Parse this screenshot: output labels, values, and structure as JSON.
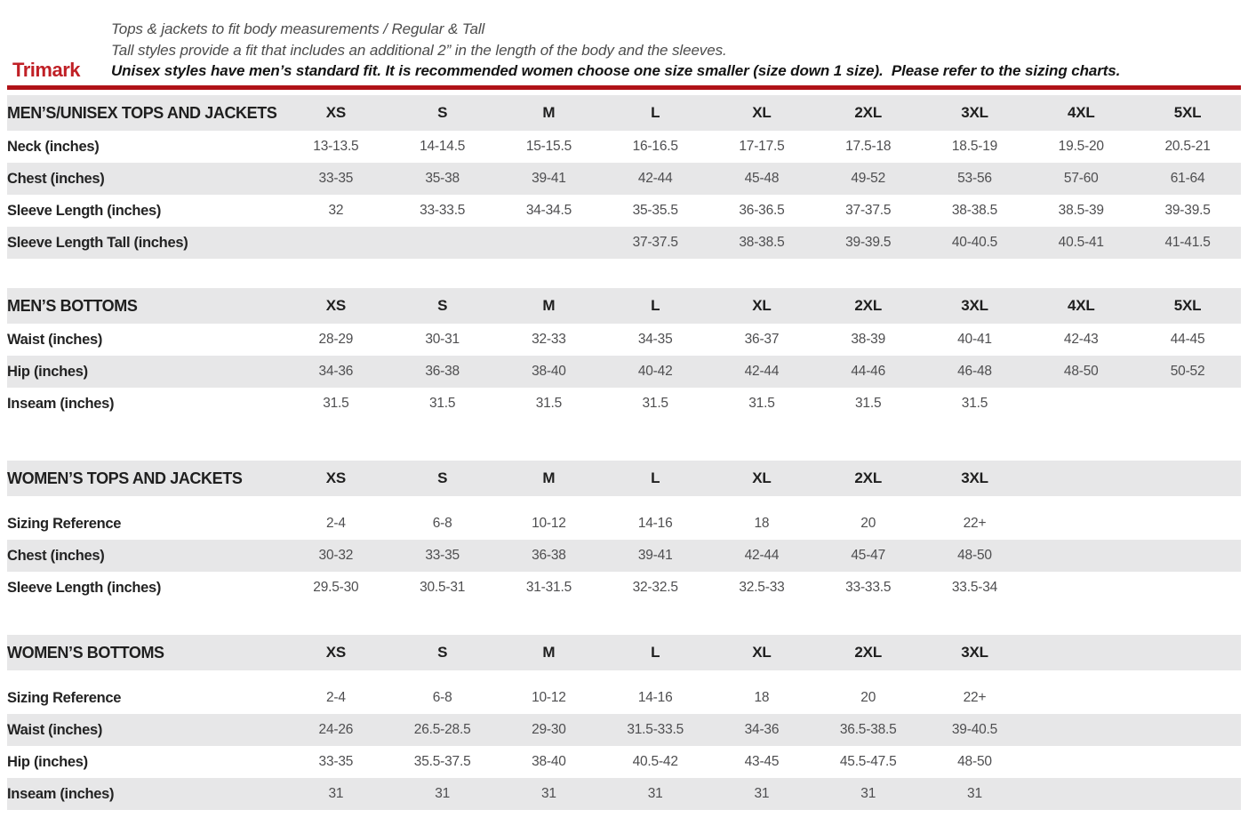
{
  "header": {
    "brand": "Trimark",
    "line1": "Tops & jackets to fit body measurements / Regular & Tall",
    "line2": "Tall styles provide a fit that includes an additional 2” in the length of the body and the sleeves.",
    "line3": "Unisex styles have men’s standard fit. It is recommended women choose one size smaller (size down 1 size).  Please refer to the sizing charts.",
    "accent_color": "#b01218",
    "brand_color": "#c02026",
    "stripe_color": "#e7e7e8"
  },
  "tables": [
    {
      "title": "MEN’S/UNISEX TOPS AND JACKETS",
      "columns": [
        "XS",
        "S",
        "M",
        "L",
        "XL",
        "2XL",
        "3XL",
        "4XL",
        "5XL"
      ],
      "header_spacer": false,
      "rows": [
        {
          "label": "Neck (inches)",
          "values": [
            "13-13.5",
            "14-14.5",
            "15-15.5",
            "16-16.5",
            "17-17.5",
            "17.5-18",
            "18.5-19",
            "19.5-20",
            "20.5-21"
          ]
        },
        {
          "label": "Chest (inches)",
          "values": [
            "33-35",
            "35-38",
            "39-41",
            "42-44",
            "45-48",
            "49-52",
            "53-56",
            "57-60",
            "61-64"
          ]
        },
        {
          "label": "Sleeve Length (inches)",
          "values": [
            "32",
            "33-33.5",
            "34-34.5",
            "35-35.5",
            "36-36.5",
            "37-37.5",
            "38-38.5",
            "38.5-39",
            "39-39.5"
          ]
        },
        {
          "label": "Sleeve Length Tall (inches)",
          "values": [
            "",
            "",
            "",
            "37-37.5",
            "38-38.5",
            "39-39.5",
            "40-40.5",
            "40.5-41",
            "41-41.5"
          ]
        }
      ]
    },
    {
      "title": "MEN’S BOTTOMS",
      "columns": [
        "XS",
        "S",
        "M",
        "L",
        "XL",
        "2XL",
        "3XL",
        "4XL",
        "5XL"
      ],
      "header_spacer": false,
      "rows": [
        {
          "label": "Waist (inches)",
          "values": [
            "28-29",
            "30-31",
            "32-33",
            "34-35",
            "36-37",
            "38-39",
            "40-41",
            "42-43",
            "44-45"
          ]
        },
        {
          "label": "Hip (inches)",
          "values": [
            "34-36",
            "36-38",
            "38-40",
            "40-42",
            "42-44",
            "44-46",
            "46-48",
            "48-50",
            "50-52"
          ]
        },
        {
          "label": "Inseam (inches)",
          "values": [
            "31.5",
            "31.5",
            "31.5",
            "31.5",
            "31.5",
            "31.5",
            "31.5",
            "",
            ""
          ]
        }
      ]
    },
    {
      "title": "WOMEN’S TOPS AND JACKETS",
      "columns": [
        "XS",
        "S",
        "M",
        "L",
        "XL",
        "2XL",
        "3XL",
        "",
        ""
      ],
      "header_spacer": true,
      "rows": [
        {
          "label": "Sizing Reference",
          "values": [
            "2-4",
            "6-8",
            "10-12",
            "14-16",
            "18",
            "20",
            "22+",
            "",
            ""
          ]
        },
        {
          "label": "Chest (inches)",
          "values": [
            "30-32",
            "33-35",
            "36-38",
            "39-41",
            "42-44",
            "45-47",
            "48-50",
            "",
            ""
          ]
        },
        {
          "label": "Sleeve Length (inches)",
          "values": [
            "29.5-30",
            "30.5-31",
            "31-31.5",
            "32-32.5",
            "32.5-33",
            "33-33.5",
            "33.5-34",
            "",
            ""
          ]
        }
      ]
    },
    {
      "title": "WOMEN’S BOTTOMS",
      "columns": [
        "XS",
        "S",
        "M",
        "L",
        "XL",
        "2XL",
        "3XL",
        "",
        ""
      ],
      "header_spacer": true,
      "rows": [
        {
          "label": "Sizing Reference",
          "values": [
            "2-4",
            "6-8",
            "10-12",
            "14-16",
            "18",
            "20",
            "22+",
            "",
            ""
          ]
        },
        {
          "label": "Waist (inches)",
          "values": [
            "24-26",
            "26.5-28.5",
            "29-30",
            "31.5-33.5",
            "34-36",
            "36.5-38.5",
            "39-40.5",
            "",
            ""
          ]
        },
        {
          "label": "Hip (inches)",
          "values": [
            "33-35",
            "35.5-37.5",
            "38-40",
            "40.5-42",
            "43-45",
            "45.5-47.5",
            "48-50",
            "",
            ""
          ]
        },
        {
          "label": "Inseam (inches)",
          "values": [
            "31",
            "31",
            "31",
            "31",
            "31",
            "31",
            "31",
            "",
            ""
          ]
        }
      ]
    }
  ]
}
